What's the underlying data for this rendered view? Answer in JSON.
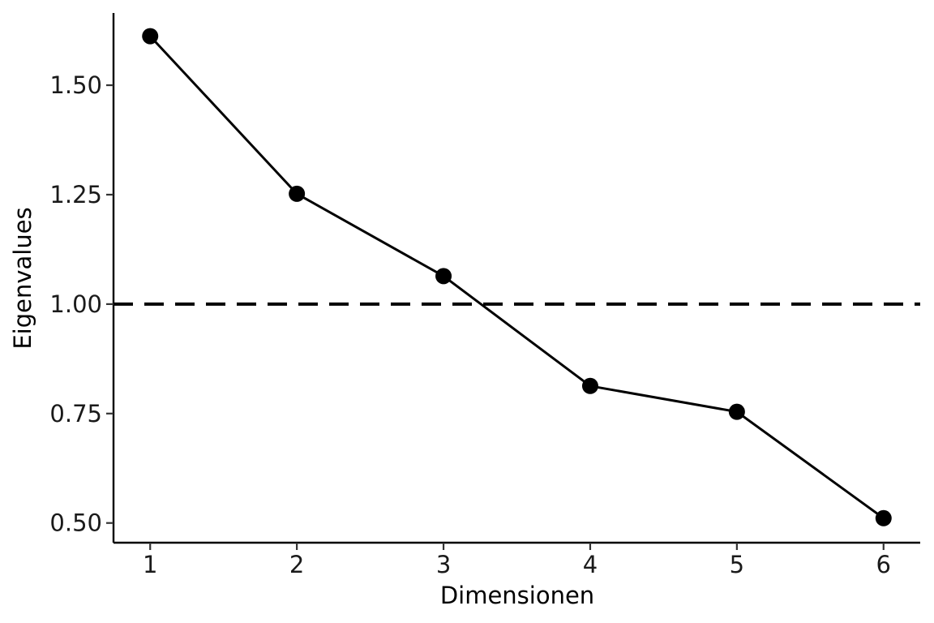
{
  "chart_data": {
    "type": "line",
    "title": "",
    "xlabel": "Dimensionen",
    "ylabel": "Eigenvalues",
    "x": [
      1,
      2,
      3,
      4,
      5,
      6
    ],
    "x_tick_labels": [
      "1",
      "2",
      "3",
      "4",
      "5",
      "6"
    ],
    "y_ticks": [
      0.5,
      0.75,
      1.0,
      1.25,
      1.5
    ],
    "y_tick_labels": [
      "0.50",
      "0.75",
      "1.00",
      "1.25",
      "1.50"
    ],
    "xlim": [
      0.75,
      6.25
    ],
    "ylim": [
      0.455,
      1.665
    ],
    "series": [
      {
        "values": [
          1.612,
          1.252,
          1.064,
          0.813,
          0.754,
          0.511
        ]
      }
    ],
    "reference_line": {
      "y": 1.0,
      "style": "dashed"
    },
    "grid": false,
    "legend": "none",
    "line_color": "#000000",
    "point_color": "#000000"
  }
}
